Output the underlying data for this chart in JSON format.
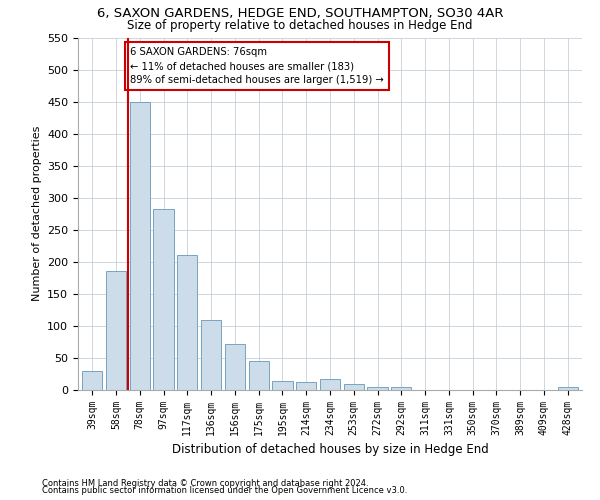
{
  "title": "6, SAXON GARDENS, HEDGE END, SOUTHAMPTON, SO30 4AR",
  "subtitle": "Size of property relative to detached houses in Hedge End",
  "xlabel": "Distribution of detached houses by size in Hedge End",
  "ylabel": "Number of detached properties",
  "categories": [
    "39sqm",
    "58sqm",
    "78sqm",
    "97sqm",
    "117sqm",
    "136sqm",
    "156sqm",
    "175sqm",
    "195sqm",
    "214sqm",
    "234sqm",
    "253sqm",
    "272sqm",
    "292sqm",
    "311sqm",
    "331sqm",
    "350sqm",
    "370sqm",
    "389sqm",
    "409sqm",
    "428sqm"
  ],
  "values": [
    30,
    185,
    450,
    283,
    210,
    110,
    72,
    45,
    14,
    13,
    17,
    10,
    5,
    5,
    0,
    0,
    0,
    0,
    0,
    0,
    5
  ],
  "bar_color": "#ccdce8",
  "bar_edge_color": "#6699bb",
  "vline_color": "#cc0000",
  "annotation_text": "6 SAXON GARDENS: 76sqm\n← 11% of detached houses are smaller (183)\n89% of semi-detached houses are larger (1,519) →",
  "annotation_box_color": "#ffffff",
  "annotation_box_edge_color": "#cc0000",
  "ylim": [
    0,
    550
  ],
  "yticks": [
    0,
    50,
    100,
    150,
    200,
    250,
    300,
    350,
    400,
    450,
    500,
    550
  ],
  "footnote1": "Contains HM Land Registry data © Crown copyright and database right 2024.",
  "footnote2": "Contains public sector information licensed under the Open Government Licence v3.0.",
  "bg_color": "#ffffff",
  "grid_color": "#c8d0d8"
}
